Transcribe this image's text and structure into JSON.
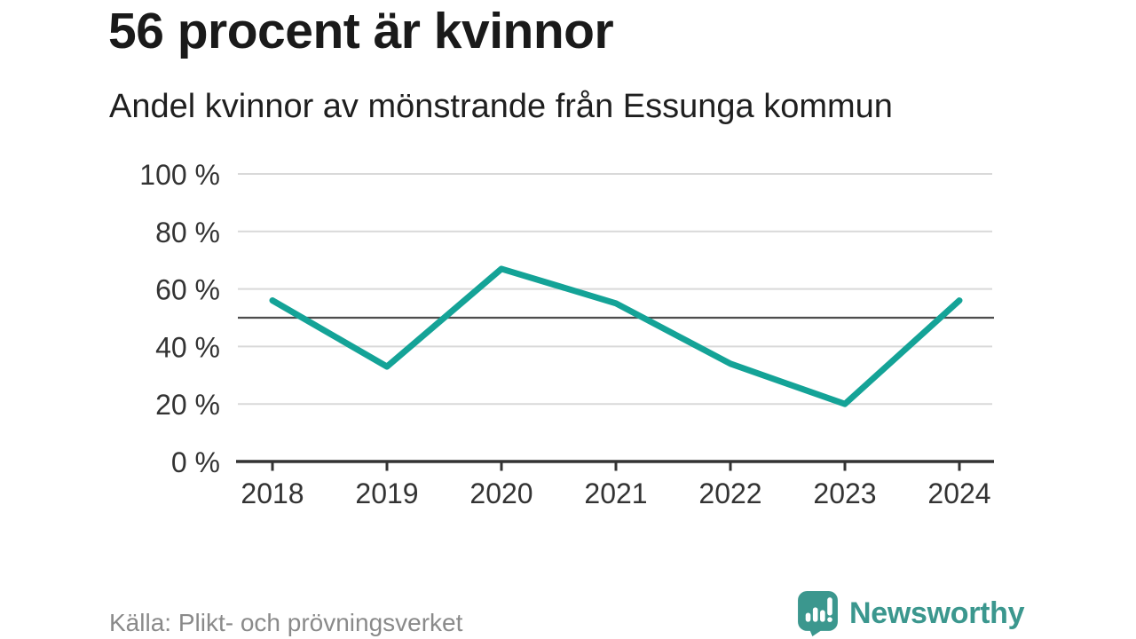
{
  "chart_data": {
    "type": "line",
    "title": "56 procent är kvinnor",
    "subtitle": "Andel kvinnor av mönstrande från Essunga kommun",
    "categories": [
      "2018",
      "2019",
      "2020",
      "2021",
      "2022",
      "2023",
      "2024"
    ],
    "series": [
      {
        "name": "Andel kvinnor",
        "values": [
          56,
          33,
          67,
          55,
          34,
          20,
          56
        ]
      }
    ],
    "unit": "%",
    "xlabel": "",
    "ylabel": "",
    "ylim": [
      0,
      100
    ],
    "yticks": [
      0,
      20,
      40,
      60,
      80,
      100
    ],
    "ytick_suffix": " %",
    "reference_line": 50,
    "grid": true,
    "legend": "none",
    "colors": {
      "line": "#14a397",
      "reference_line": "#4d4d4d",
      "gridline": "#d9d9d9",
      "axis": "#333333",
      "tick_label": "#333333"
    }
  },
  "footer": {
    "source_label": "Källa: Plikt- och prövningsverket",
    "logo_text": "Newsworthy",
    "logo_color": "#3b978e",
    "logo_icon": "chart-bars-speech-bubble-icon"
  }
}
